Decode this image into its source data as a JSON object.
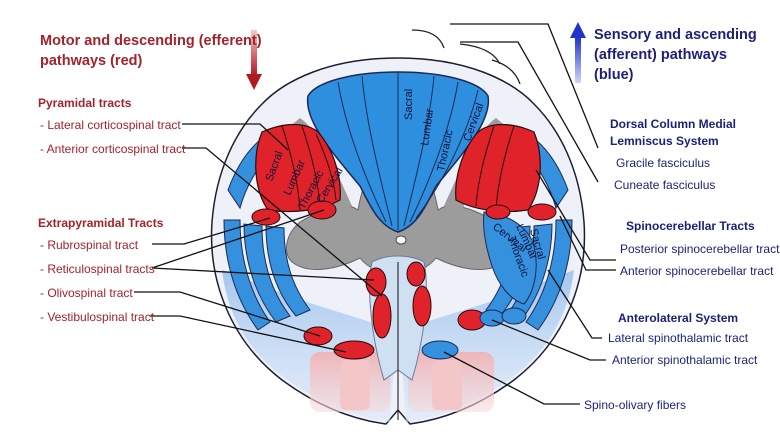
{
  "motor_header": [
    "Motor and descending (efferent)",
    "pathways   (red)"
  ],
  "sensory_header": [
    "Sensory and ascending",
    "(afferent) pathways",
    "(blue)"
  ],
  "pyramidal": {
    "title": "Pyramidal tracts",
    "items": [
      "- Lateral corticospinal tract",
      "- Anterior corticospinal tract"
    ]
  },
  "extrapyramidal": {
    "title": "Extrapyramidal Tracts",
    "items": [
      "- Rubrospinal tract",
      "- Reticulospinal tracts",
      "- Olivospinal tract",
      "- Vestibulospinal tract"
    ]
  },
  "dorsal_column": {
    "title": [
      "Dorsal Column Medial",
      "Lemniscus System"
    ],
    "items": [
      "Gracile fasciculus",
      "Cuneate fasciculus"
    ]
  },
  "spinocerebellar": {
    "title": "Spinocerebellar Tracts",
    "items": [
      "Posterior spinocerebellar tract",
      "Anterior spinocerebellar tract"
    ]
  },
  "anterolateral": {
    "title": "Anterolateral System",
    "items": [
      "Lateral spinothalamic tract",
      "Anterior spinothalamic tract"
    ]
  },
  "spino_olivary": "Spino-olivary fibers",
  "segments": {
    "dorsal": [
      "Sacral",
      "Lumbar",
      "Thoracic",
      "Cervical"
    ],
    "left_corticospinal": [
      "Sacral",
      "Lumbar",
      "Thoracic",
      "Cervical"
    ],
    "right_spinothalamic": [
      "Cervical",
      "Lumbar",
      "Thoracic",
      "Sacral"
    ]
  },
  "colors": {
    "motor_red": "#e0232b",
    "sensory_blue": "#2e8fde",
    "grey_matter": "#9a9a9a",
    "label_red": "#a3232a",
    "label_navy": "#1b1f7a"
  }
}
